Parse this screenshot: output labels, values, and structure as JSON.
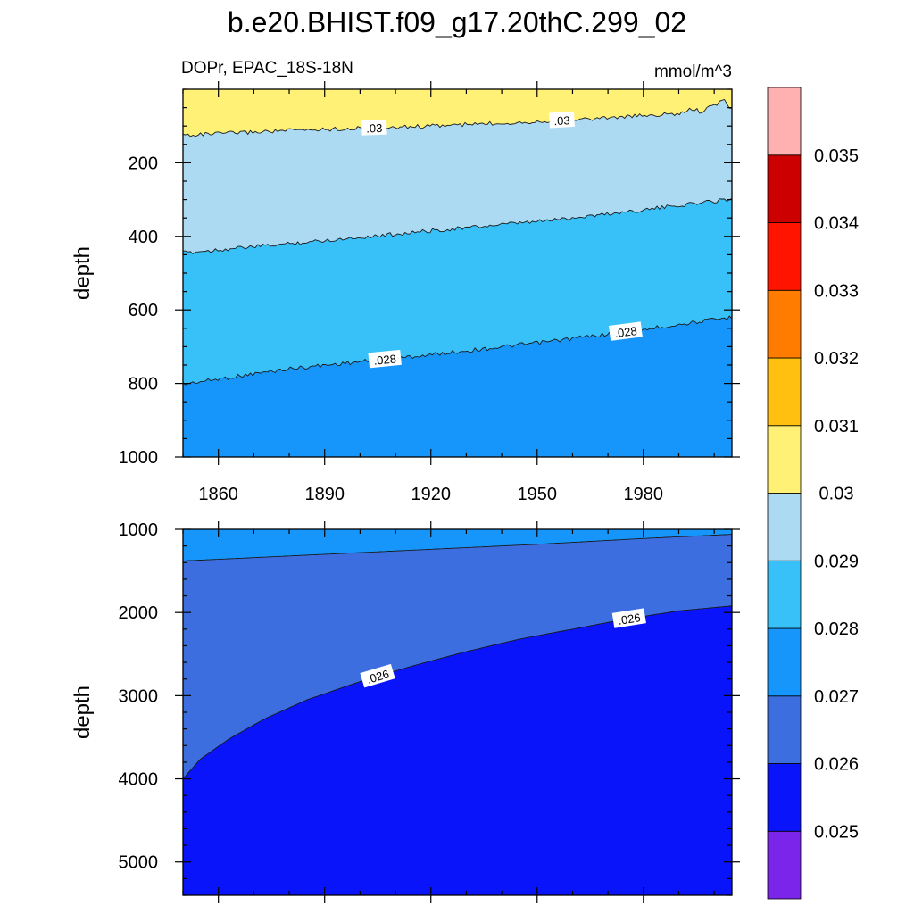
{
  "chart_data": {
    "type": "contour",
    "title": "b.e20.BHIST.f09_g17.20thC.299_02",
    "left_subtitle": "DOPr, EPAC_18S-18N",
    "right_subtitle": "mmol/m^3",
    "xlim": [
      1850,
      2005
    ],
    "x_ticks": [
      1860,
      1890,
      1920,
      1950,
      1980
    ],
    "x_tick_labels": [
      "1860",
      "1890",
      "1920",
      "1950",
      "1980"
    ],
    "colorbar": {
      "colors": [
        "#7b24ea",
        "#0a14fa",
        "#3c6ee0",
        "#1696fa",
        "#38c0f8",
        "#acdaf2",
        "#fff176",
        "#ffc010",
        "#ff7c00",
        "#ff1400",
        "#cc0000",
        "#ffb0b0"
      ],
      "levels": [
        "0.025",
        "0.026",
        "0.027",
        "0.028",
        "0.029",
        "0.03",
        "0.031",
        "0.032",
        "0.033",
        "0.034",
        "0.035"
      ]
    },
    "panels": [
      {
        "name": "upper",
        "ylabel": "depth",
        "ylim": [
          1000,
          0
        ],
        "y_ticks": [
          200,
          400,
          600,
          800,
          1000
        ],
        "y_tick_labels": [
          "200",
          "400",
          "600",
          "800",
          "1000"
        ],
        "top_depth": 0,
        "background": "#1696fa",
        "contours": [
          {
            "level": 0.028,
            "label": ".028",
            "fill_above": "#38c0f8",
            "depth": [
              [
                1850,
                802
              ],
              [
                1880,
                760
              ],
              [
                1920,
                722
              ],
              [
                1950,
                690
              ],
              [
                1980,
                653
              ],
              [
                2005,
                620
              ]
            ],
            "label_x": [
              1907,
              1975
            ]
          },
          {
            "level": 0.029,
            "label": "",
            "fill_above": "#acdaf2",
            "depth": [
              [
                1850,
                445
              ],
              [
                1880,
                420
              ],
              [
                1920,
                385
              ],
              [
                1950,
                360
              ],
              [
                1980,
                328
              ],
              [
                2005,
                298
              ]
            ],
            "label_x": []
          },
          {
            "level": 0.03,
            "label": ".03",
            "fill_above": "#fff176",
            "depth": [
              [
                1850,
                125
              ],
              [
                1880,
                112
              ],
              [
                1920,
                100
              ],
              [
                1950,
                88
              ],
              [
                1980,
                72
              ],
              [
                1991,
                66
              ],
              [
                1994,
                52
              ],
              [
                1996,
                62
              ],
              [
                2003,
                30
              ],
              [
                2005,
                55
              ]
            ],
            "label_x": [
              1904,
              1957
            ]
          }
        ]
      },
      {
        "name": "lower",
        "ylabel": "depth",
        "ylim": [
          5400,
          1000
        ],
        "y_ticks": [
          1000,
          2000,
          3000,
          4000,
          5000
        ],
        "y_tick_labels": [
          "1000",
          "2000",
          "3000",
          "4000",
          "5000"
        ],
        "top_depth": 1000,
        "background": "#0a14fa",
        "contours": [
          {
            "level": 0.026,
            "label": ".026",
            "fill_above": "#3c6ee0",
            "depth": [
              [
                1850,
                4000
              ],
              [
                1855,
                3760
              ],
              [
                1863,
                3520
              ],
              [
                1873,
                3280
              ],
              [
                1885,
                3050
              ],
              [
                1900,
                2830
              ],
              [
                1915,
                2640
              ],
              [
                1930,
                2470
              ],
              [
                1945,
                2320
              ],
              [
                1960,
                2200
              ],
              [
                1975,
                2080
              ],
              [
                1990,
                1980
              ],
              [
                2005,
                1920
              ]
            ],
            "label_x": [
              1905,
              1976
            ]
          },
          {
            "level": 0.027,
            "label": "",
            "fill_above": "#1696fa",
            "depth": [
              [
                1850,
                1380
              ],
              [
                1880,
                1320
              ],
              [
                1920,
                1240
              ],
              [
                1950,
                1180
              ],
              [
                1980,
                1110
              ],
              [
                2005,
                1060
              ]
            ],
            "label_x": []
          }
        ]
      }
    ]
  }
}
